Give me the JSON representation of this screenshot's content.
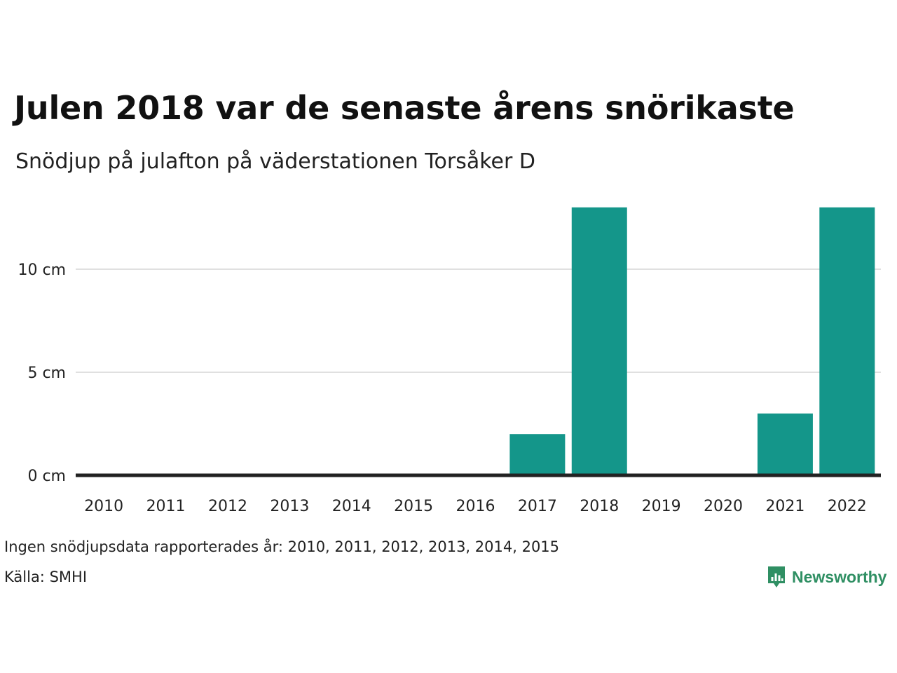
{
  "header": {
    "title": "Julen 2018 var de senaste årens snörikaste",
    "subtitle": "Snödjup på julafton på väderstationen Torsåker D"
  },
  "footer": {
    "note": "Ingen snödjupsdata rapporterades år: 2010, 2011, 2012, 2013, 2014, 2015",
    "source_label": "Källa:",
    "source_value": "SMHI",
    "brand": "Newsworthy"
  },
  "colors": {
    "bar": "#14968a",
    "baseline": "#222222",
    "grid": "#e0e0e0",
    "brand": "#2f8f63"
  },
  "icons": {
    "logo": "bar-chart-speech-bubble-icon"
  },
  "chart_data": {
    "type": "bar",
    "categories": [
      "2010",
      "2011",
      "2012",
      "2013",
      "2014",
      "2015",
      "2016",
      "2017",
      "2018",
      "2019",
      "2020",
      "2021",
      "2022"
    ],
    "values": [
      null,
      null,
      null,
      null,
      null,
      null,
      0,
      2,
      13,
      0,
      0,
      3,
      13
    ],
    "unit": "cm",
    "yticks": [
      0,
      5,
      10
    ],
    "ytick_labels": [
      "0 cm",
      "5 cm",
      "10 cm"
    ],
    "ylim": [
      0,
      13
    ],
    "grid": true,
    "xlabel": "",
    "ylabel": ""
  }
}
